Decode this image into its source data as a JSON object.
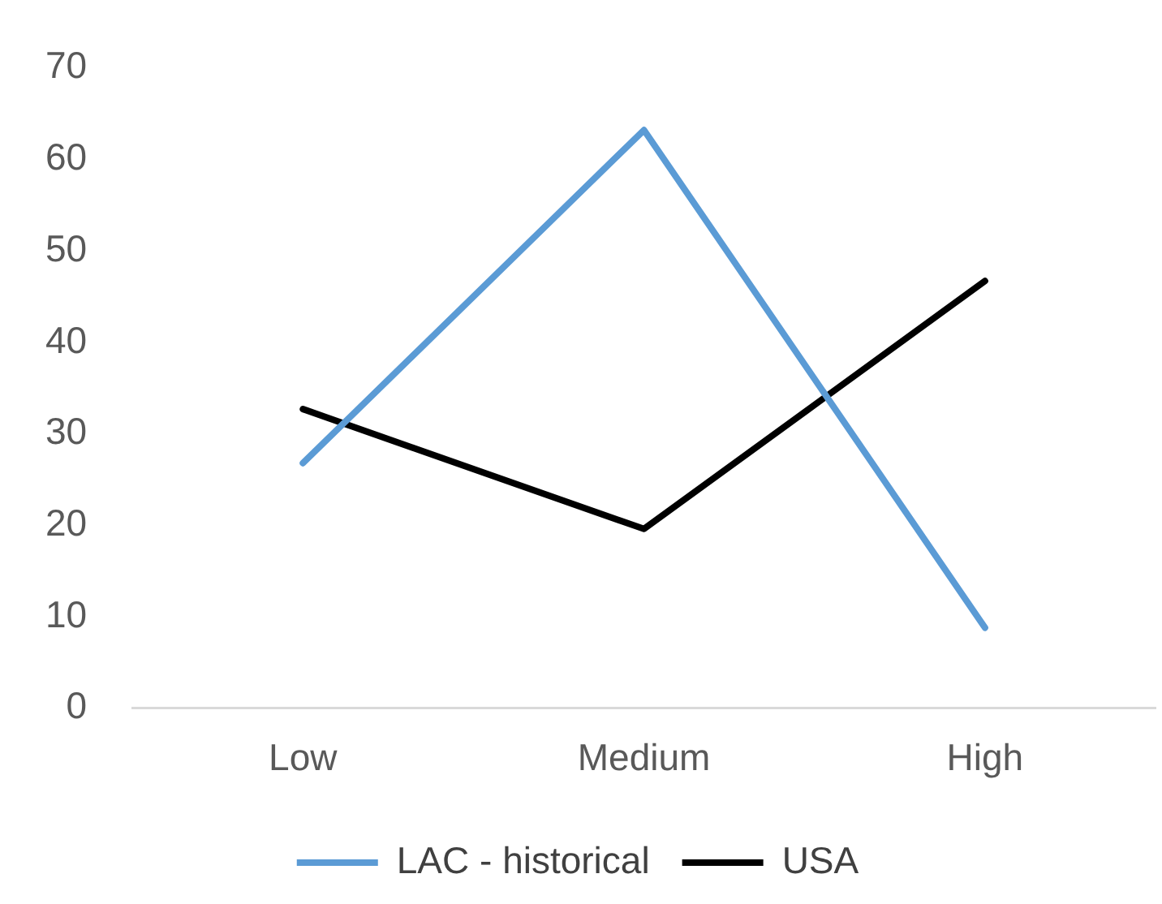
{
  "chart_data": {
    "type": "line",
    "categories": [
      "Low",
      "Medium",
      "High"
    ],
    "series": [
      {
        "name": "LAC - historical",
        "color": "#5b9bd5",
        "values": [
          26.8,
          63.2,
          8.8
        ]
      },
      {
        "name": "USA",
        "color": "#000000",
        "values": [
          32.7,
          19.6,
          46.7
        ]
      }
    ],
    "ylim": [
      0,
      70
    ],
    "yticks": [
      0,
      10,
      20,
      30,
      40,
      50,
      60,
      70
    ],
    "grid": false,
    "legend": "bottom",
    "marker": "none",
    "line_style": "solid"
  }
}
